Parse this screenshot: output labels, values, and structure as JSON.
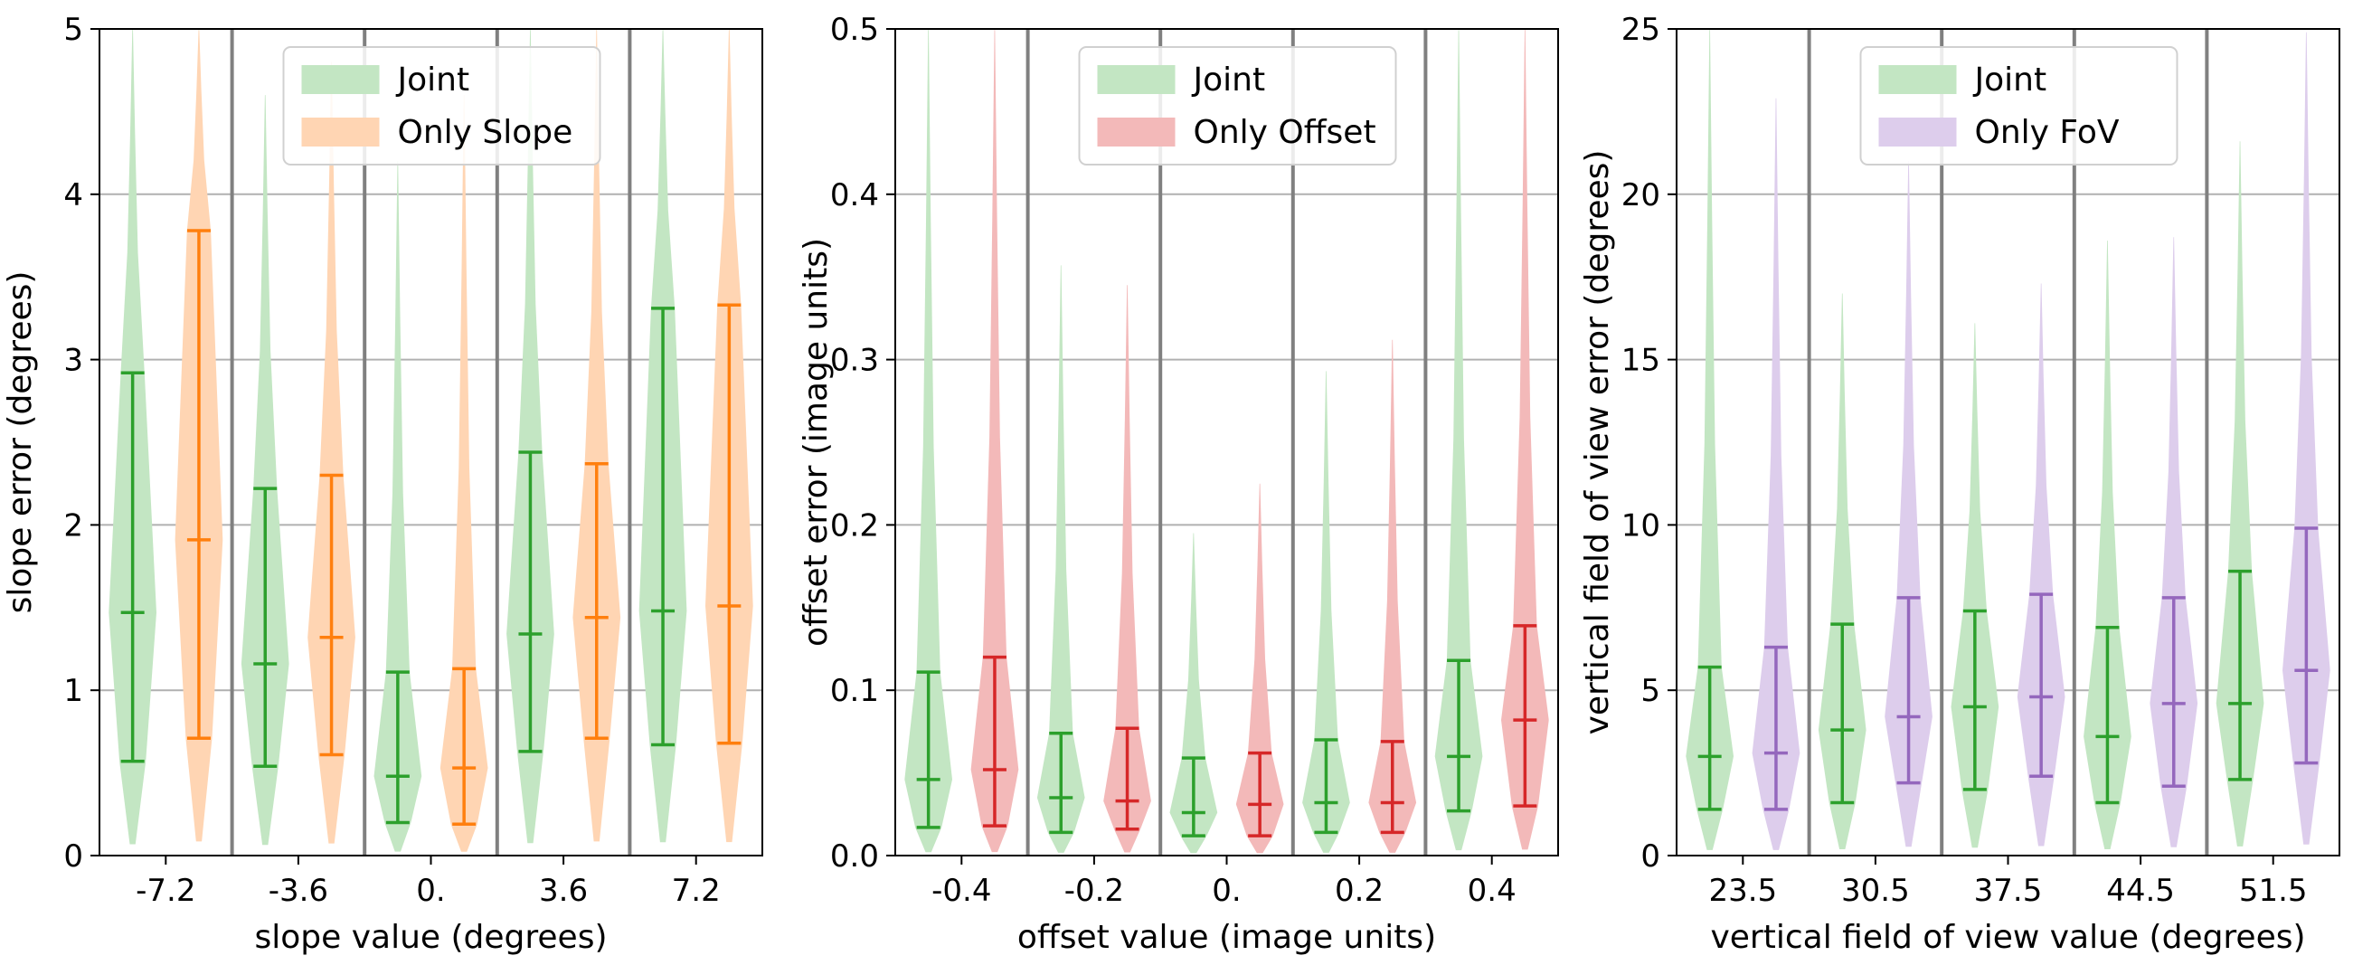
{
  "chart_data": [
    {
      "type": "violin",
      "xlabel": "slope value (degrees)",
      "ylabel": "slope error (degrees)",
      "ylim": [
        0,
        5
      ],
      "yticks": [
        "0",
        "1",
        "2",
        "3",
        "4",
        "5"
      ],
      "categories": [
        "-7.2",
        "-3.6",
        "0.",
        "3.6",
        "7.2"
      ],
      "grid": true,
      "legend": "top-center",
      "series": [
        {
          "name": "Joint",
          "color": "#2ca02c",
          "fill": "#c3e6c3",
          "min": [
            0.57,
            0.54,
            0.2,
            0.63,
            0.67
          ],
          "median": [
            1.47,
            1.16,
            0.48,
            1.34,
            1.48
          ],
          "max": [
            2.92,
            2.22,
            1.11,
            2.44,
            3.31
          ],
          "top": [
            5.0,
            4.6,
            4.2,
            5.0,
            5.0
          ]
        },
        {
          "name": "Only Slope",
          "color": "#ff7f0e",
          "fill": "#ffd5b3",
          "min": [
            0.71,
            0.61,
            0.19,
            0.71,
            0.68
          ],
          "median": [
            1.91,
            1.32,
            0.53,
            1.44,
            1.51
          ],
          "max": [
            3.78,
            2.3,
            1.13,
            2.37,
            3.33
          ],
          "top": [
            5.0,
            4.8,
            4.6,
            5.0,
            5.0
          ]
        }
      ]
    },
    {
      "type": "violin",
      "xlabel": "offset value (image units)",
      "ylabel": "offset error (image units)",
      "ylim": [
        0,
        0.5
      ],
      "yticks": [
        "0.0",
        "0.1",
        "0.2",
        "0.3",
        "0.4",
        "0.5"
      ],
      "categories": [
        "-0.4",
        "-0.2",
        "0.",
        "0.2",
        "0.4"
      ],
      "grid": true,
      "legend": "top-center",
      "series": [
        {
          "name": "Joint",
          "color": "#2ca02c",
          "fill": "#c3e6c3",
          "min": [
            0.017,
            0.014,
            0.012,
            0.014,
            0.027
          ],
          "median": [
            0.046,
            0.035,
            0.026,
            0.032,
            0.06
          ],
          "max": [
            0.111,
            0.074,
            0.059,
            0.07,
            0.118
          ],
          "top": [
            0.5,
            0.357,
            0.195,
            0.293,
            0.5
          ]
        },
        {
          "name": "Only Offset",
          "color": "#d62728",
          "fill": "#f3b9b9",
          "min": [
            0.018,
            0.016,
            0.012,
            0.014,
            0.03
          ],
          "median": [
            0.052,
            0.033,
            0.031,
            0.032,
            0.082
          ],
          "max": [
            0.12,
            0.077,
            0.062,
            0.069,
            0.139
          ],
          "top": [
            0.5,
            0.345,
            0.225,
            0.312,
            0.5
          ]
        }
      ]
    },
    {
      "type": "violin",
      "xlabel": "vertical field of view value (degrees)",
      "ylabel": "vertical field of view error (degrees)",
      "ylim": [
        0,
        25
      ],
      "yticks": [
        "0",
        "5",
        "10",
        "15",
        "20",
        "25"
      ],
      "categories": [
        "23.5",
        "30.5",
        "37.5",
        "44.5",
        "51.5"
      ],
      "grid": true,
      "legend": "top-center",
      "series": [
        {
          "name": "Joint",
          "color": "#2ca02c",
          "fill": "#c3e6c3",
          "min": [
            1.4,
            1.6,
            2.0,
            1.6,
            2.3
          ],
          "median": [
            3.0,
            3.8,
            4.5,
            3.6,
            4.6
          ],
          "max": [
            5.7,
            7.0,
            7.4,
            6.9,
            8.6
          ],
          "top": [
            25.0,
            17.0,
            16.1,
            18.6,
            21.6
          ]
        },
        {
          "name": "Only FoV",
          "color": "#9467bd",
          "fill": "#ddcdec",
          "min": [
            1.4,
            2.2,
            2.4,
            2.1,
            2.8
          ],
          "median": [
            3.1,
            4.2,
            4.8,
            4.6,
            5.6
          ],
          "max": [
            6.3,
            7.8,
            7.9,
            7.8,
            9.9
          ],
          "top": [
            22.9,
            21.0,
            17.3,
            18.7,
            24.9
          ]
        }
      ]
    }
  ]
}
